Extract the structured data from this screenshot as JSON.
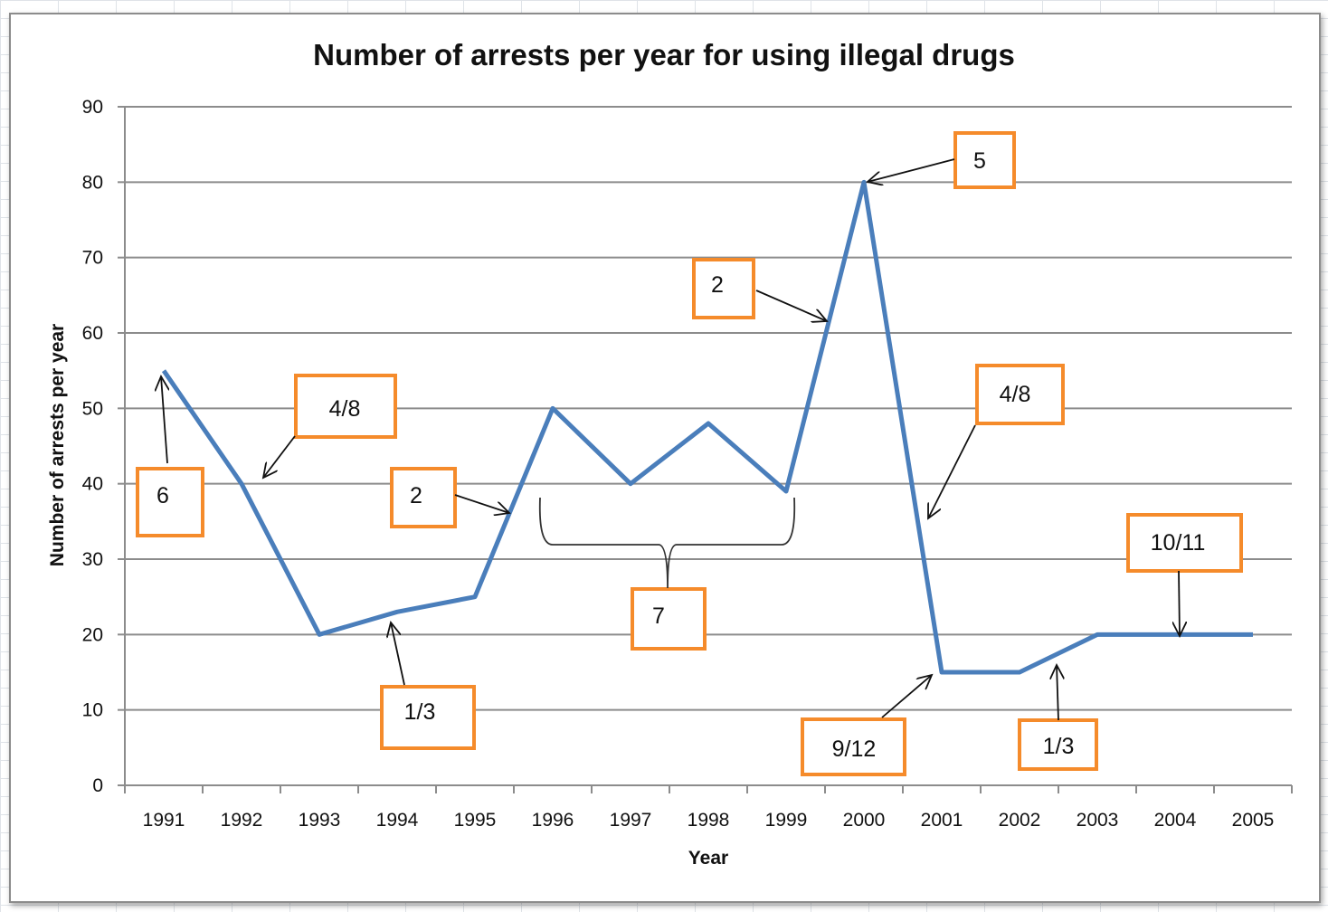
{
  "chart_data": {
    "type": "line",
    "title": "Number of arrests per year for using illegal drugs",
    "xlabel": "Year",
    "ylabel": "Number of arrests per year",
    "categories": [
      "1991",
      "1992",
      "1993",
      "1994",
      "1995",
      "1996",
      "1997",
      "1998",
      "1999",
      "2000",
      "2001",
      "2002",
      "2003",
      "2004",
      "2005"
    ],
    "series": [
      {
        "values": [
          55,
          40,
          20,
          23,
          25,
          50,
          40,
          48,
          39,
          80,
          15,
          15,
          20,
          20,
          20
        ]
      }
    ],
    "ylim": [
      0,
      90
    ],
    "yticks": [
      "0",
      "10",
      "20",
      "30",
      "40",
      "50",
      "60",
      "70",
      "80",
      "90"
    ],
    "grid": true,
    "colors": {
      "line": "#4a7ebb",
      "box": "#f58b2b",
      "grid": "#8c8c8c"
    },
    "annotations": [
      {
        "label": "6",
        "points_to": "1991"
      },
      {
        "label": "4/8",
        "points_to": "1991-1992 decline"
      },
      {
        "label": "1/3",
        "points_to": "1993-1995 rise"
      },
      {
        "label": "2",
        "points_to": "1995-1996 rise"
      },
      {
        "label": "7",
        "points_to": "1996-1999"
      },
      {
        "label": "2",
        "points_to": "1999-2000 rise"
      },
      {
        "label": "5",
        "points_to": "2000"
      },
      {
        "label": "4/8",
        "points_to": "2000-2001 decline"
      },
      {
        "label": "9/12",
        "points_to": "2001"
      },
      {
        "label": "1/3",
        "points_to": "2002-2003 rise"
      },
      {
        "label": "10/11",
        "points_to": "2003-2005"
      }
    ]
  }
}
